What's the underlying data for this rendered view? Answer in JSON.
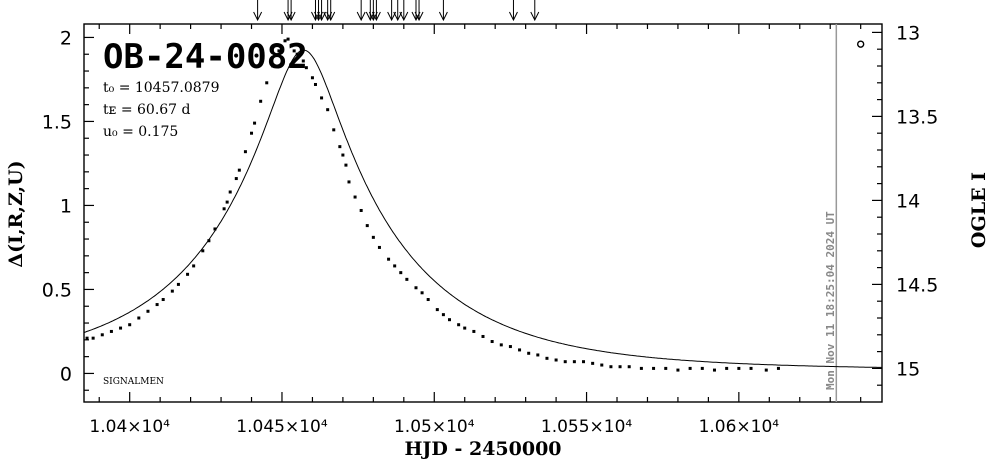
{
  "chart_data": {
    "type": "scatter",
    "title": "OB-24-0082",
    "params": {
      "t0": "t₀ = 10457.0879",
      "tE": "tᴇ = 60.67 d",
      "u0": "u₀ = 0.175"
    },
    "xlabel": "HJD - 2450000",
    "ylabel": "Δ(I,R,Z,U)",
    "y2label": "OGLE I",
    "footer_tag": "SIGNALMEN",
    "timestamp": "Mon Nov 11 18:25:04 2024 UT",
    "xlim": [
      10385,
      10647
    ],
    "ylim": [
      -0.17,
      2.08
    ],
    "y2lim": [
      15.2,
      12.95
    ],
    "x_ticks": [
      10400,
      10450,
      10500,
      10550,
      10600
    ],
    "x_tick_labels": [
      "1.04×10⁴",
      "1.045×10⁴",
      "1.05×10⁴",
      "1.055×10⁴",
      "1.06×10⁴"
    ],
    "y_ticks": [
      0,
      0.5,
      1,
      1.5,
      2
    ],
    "y_tick_labels": [
      "0",
      "0.5",
      "1",
      "1.5",
      "2"
    ],
    "y2_ticks": [
      13,
      13.5,
      14,
      14.5,
      15
    ],
    "y2_tick_labels": [
      "13",
      "13.5",
      "14",
      "14.5",
      "15"
    ],
    "model": {
      "t0": 10457.0879,
      "tE": 60.67,
      "u0": 0.175,
      "baseline_offset": 0.02
    },
    "current_date": 10632.0,
    "arrows_x": [
      10442,
      10452,
      10453,
      10461,
      10462,
      10463,
      10465,
      10466,
      10476,
      10479,
      10480,
      10481,
      10486,
      10488,
      10490,
      10494,
      10495,
      10503,
      10526,
      10533
    ],
    "extra_point": {
      "x": 10640,
      "y": 1.96
    },
    "series": [
      {
        "points": [
          [
            10386,
            0.21
          ],
          [
            10388,
            0.21
          ],
          [
            10391,
            0.23
          ],
          [
            10394,
            0.25
          ],
          [
            10397,
            0.27
          ],
          [
            10400,
            0.29
          ],
          [
            10403,
            0.33
          ],
          [
            10406,
            0.37
          ],
          [
            10409,
            0.41
          ],
          [
            10411,
            0.44
          ],
          [
            10414,
            0.49
          ],
          [
            10416,
            0.53
          ],
          [
            10419,
            0.59
          ],
          [
            10421,
            0.64
          ],
          [
            10424,
            0.73
          ],
          [
            10426,
            0.79
          ],
          [
            10428,
            0.86
          ],
          [
            10431,
            0.98
          ],
          [
            10432,
            1.02
          ],
          [
            10433,
            1.08
          ],
          [
            10435,
            1.16
          ],
          [
            10436,
            1.21
          ],
          [
            10438,
            1.32
          ],
          [
            10440,
            1.43
          ],
          [
            10441,
            1.49
          ],
          [
            10443,
            1.62
          ],
          [
            10445,
            1.73
          ],
          [
            10447,
            1.83
          ],
          [
            10449,
            1.92
          ],
          [
            10451,
            1.98
          ],
          [
            10452,
            1.99
          ],
          [
            10453,
            1.95
          ],
          [
            10454,
            1.92
          ],
          [
            10455,
            1.9
          ],
          [
            10457,
            1.86
          ],
          [
            10458,
            1.82
          ],
          [
            10460,
            1.76
          ],
          [
            10461,
            1.72
          ],
          [
            10463,
            1.64
          ],
          [
            10465,
            1.57
          ],
          [
            10467,
            1.45
          ],
          [
            10469,
            1.35
          ],
          [
            10470,
            1.3
          ],
          [
            10471,
            1.24
          ],
          [
            10472,
            1.14
          ],
          [
            10474,
            1.05
          ],
          [
            10476,
            0.97
          ],
          [
            10478,
            0.88
          ],
          [
            10480,
            0.81
          ],
          [
            10482,
            0.75
          ],
          [
            10485,
            0.68
          ],
          [
            10487,
            0.64
          ],
          [
            10489,
            0.6
          ],
          [
            10491,
            0.56
          ],
          [
            10494,
            0.51
          ],
          [
            10496,
            0.48
          ],
          [
            10498,
            0.44
          ],
          [
            10501,
            0.38
          ],
          [
            10503,
            0.35
          ],
          [
            10505,
            0.32
          ],
          [
            10508,
            0.29
          ],
          [
            10510,
            0.27
          ],
          [
            10513,
            0.25
          ],
          [
            10516,
            0.22
          ],
          [
            10519,
            0.19
          ],
          [
            10522,
            0.17
          ],
          [
            10525,
            0.16
          ],
          [
            10528,
            0.14
          ],
          [
            10531,
            0.12
          ],
          [
            10534,
            0.11
          ],
          [
            10537,
            0.09
          ],
          [
            10540,
            0.08
          ],
          [
            10543,
            0.07
          ],
          [
            10546,
            0.07
          ],
          [
            10549,
            0.07
          ],
          [
            10552,
            0.06
          ],
          [
            10555,
            0.05
          ],
          [
            10558,
            0.04
          ],
          [
            10561,
            0.04
          ],
          [
            10564,
            0.04
          ],
          [
            10568,
            0.03
          ],
          [
            10572,
            0.03
          ],
          [
            10576,
            0.03
          ],
          [
            10580,
            0.02
          ],
          [
            10584,
            0.03
          ],
          [
            10588,
            0.03
          ],
          [
            10592,
            0.02
          ],
          [
            10596,
            0.03
          ],
          [
            10600,
            0.03
          ],
          [
            10604,
            0.03
          ],
          [
            10609,
            0.02
          ],
          [
            10613,
            0.03
          ]
        ]
      }
    ]
  }
}
